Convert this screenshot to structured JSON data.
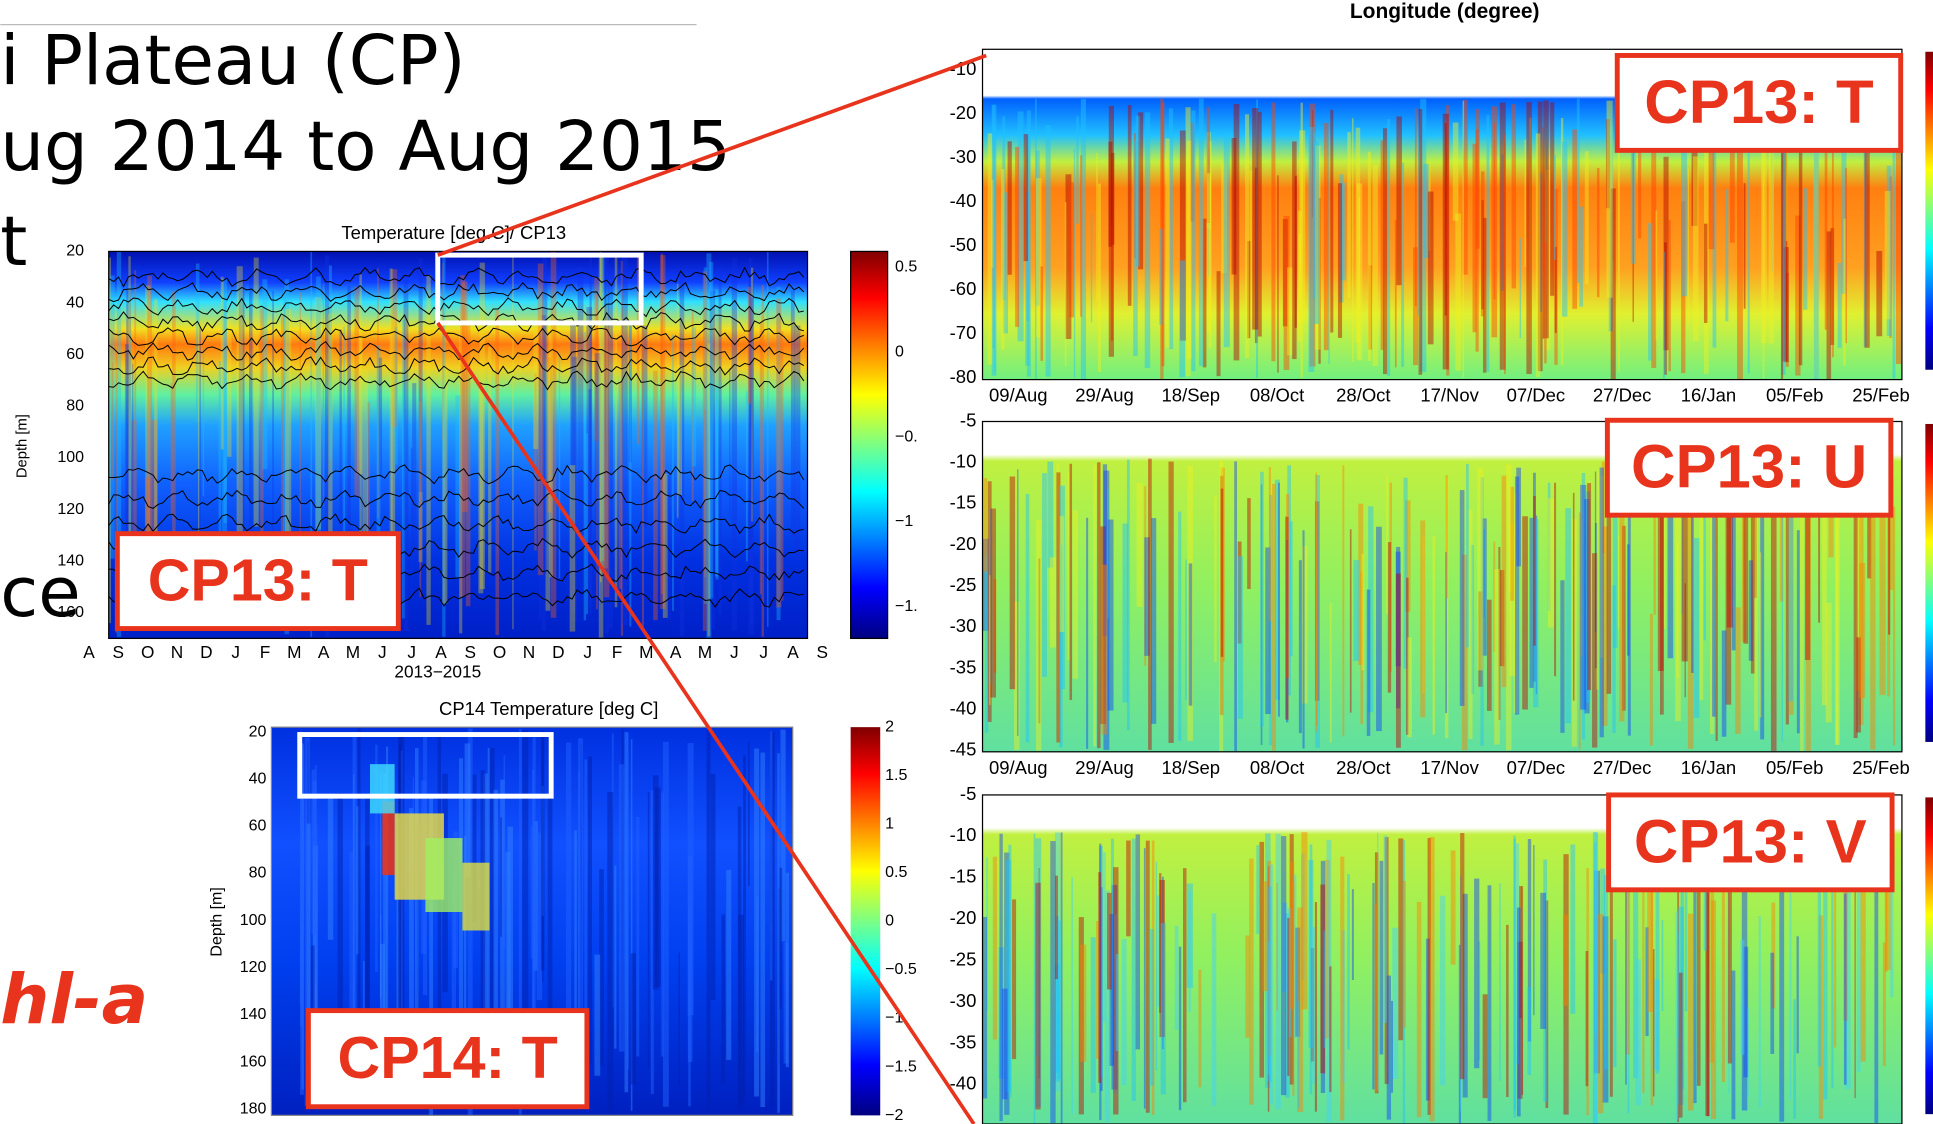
{
  "slide_text": [
    "i Plateau (CP)",
    "ug 2014 to Aug 2015",
    "t",
    "ce",
    "hl-a"
  ],
  "cp13_overview": {
    "title": "Temperature [deg.C]/ CP13",
    "y_label": "Depth [m]",
    "y_ticks": [
      "20",
      "40",
      "60",
      "80",
      "100",
      "120",
      "140",
      "160"
    ],
    "x_ticks": [
      "A",
      "S",
      "O",
      "N",
      "D",
      "J",
      "F",
      "M",
      "A",
      "M",
      "J",
      "J",
      "A",
      "S",
      "O",
      "N",
      "D",
      "J",
      "F",
      "M",
      "A",
      "M",
      "J",
      "J",
      "A",
      "S"
    ],
    "x_label": "2013−2015",
    "colorbar_ticks": [
      "0.5",
      "0",
      "−0.",
      "−1",
      "−1."
    ],
    "tag": "CP13: T"
  },
  "cp14_overview": {
    "title": "CP14 Temperature [deg C]",
    "y_label": "Depth [m]",
    "y_ticks": [
      "20",
      "40",
      "60",
      "80",
      "100",
      "120",
      "140",
      "160",
      "180"
    ],
    "colorbar_ticks": [
      "2",
      "1.5",
      "1",
      "0.5",
      "0",
      "−0.5",
      "−1",
      "−1.5",
      "−2"
    ],
    "tag": "CP14: T"
  },
  "detail": {
    "header": "Longitude (degree)",
    "panels": [
      {
        "tag": "CP13: T",
        "y_ticks": [
          "-10",
          "-20",
          "-30",
          "-40",
          "-50",
          "-60",
          "-70",
          "-80"
        ],
        "x_ticks": [
          "09/Aug",
          "29/Aug",
          "18/Sep",
          "08/Oct",
          "28/Oct",
          "17/Nov",
          "07/Dec",
          "27/Dec",
          "16/Jan",
          "05/Feb",
          "25/Feb"
        ]
      },
      {
        "tag": "CP13: U",
        "y_ticks": [
          "-5",
          "-10",
          "-15",
          "-20",
          "-25",
          "-30",
          "-35",
          "-40",
          "-45"
        ],
        "x_ticks": [
          "09/Aug",
          "29/Aug",
          "18/Sep",
          "08/Oct",
          "28/Oct",
          "17/Nov",
          "07/Dec",
          "27/Dec",
          "16/Jan",
          "05/Feb",
          "25/Feb"
        ]
      },
      {
        "tag": "CP13: V",
        "y_ticks": [
          "-5",
          "-10",
          "-15",
          "-20",
          "-25",
          "-30",
          "-35",
          "-40"
        ]
      }
    ]
  }
}
